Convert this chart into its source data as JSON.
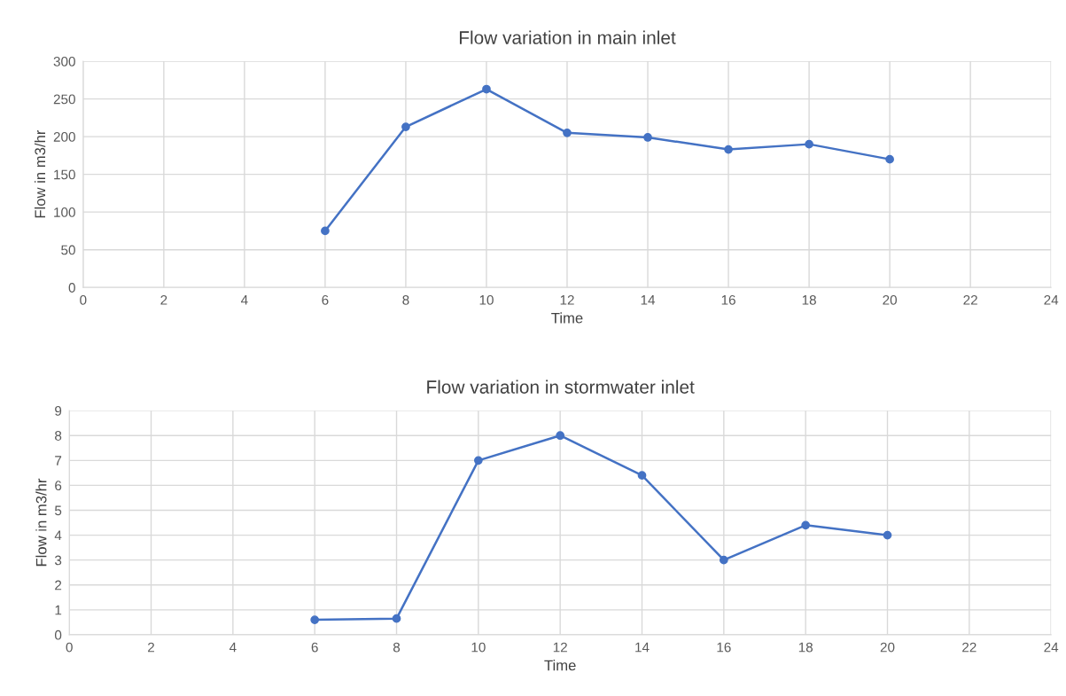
{
  "chart_data": [
    {
      "type": "line",
      "title": "Flow variation in main inlet",
      "xlabel": "Time",
      "ylabel": "Flow in m3/hr",
      "x": [
        6,
        8,
        10,
        12,
        14,
        16,
        18,
        20
      ],
      "series": [
        {
          "color": "#4472c4",
          "values": [
            75,
            213,
            263,
            205,
            199,
            183,
            190,
            170
          ]
        }
      ],
      "xlim": [
        0,
        24
      ],
      "xticks": [
        0,
        2,
        4,
        6,
        8,
        10,
        12,
        14,
        16,
        18,
        20,
        22,
        24
      ],
      "ylim": [
        0,
        300
      ],
      "yticks": [
        0,
        50,
        100,
        150,
        200,
        250,
        300
      ],
      "grid": true,
      "marker": "circle",
      "line_style": "solid"
    },
    {
      "type": "line",
      "title": "Flow variation in stormwater inlet",
      "xlabel": "Time",
      "ylabel": "Flow in m3/hr",
      "x": [
        6,
        8,
        10,
        12,
        14,
        16,
        18,
        20
      ],
      "series": [
        {
          "color": "#4472c4",
          "values": [
            0.6,
            0.65,
            7.0,
            8.0,
            6.4,
            3.0,
            4.4,
            4.0
          ]
        }
      ],
      "xlim": [
        0,
        24
      ],
      "xticks": [
        0,
        2,
        4,
        6,
        8,
        10,
        12,
        14,
        16,
        18,
        20,
        22,
        24
      ],
      "ylim": [
        0,
        9
      ],
      "yticks": [
        0,
        1,
        2,
        3,
        4,
        5,
        6,
        7,
        8,
        9
      ],
      "grid": true,
      "marker": "circle",
      "line_style": "solid"
    }
  ]
}
